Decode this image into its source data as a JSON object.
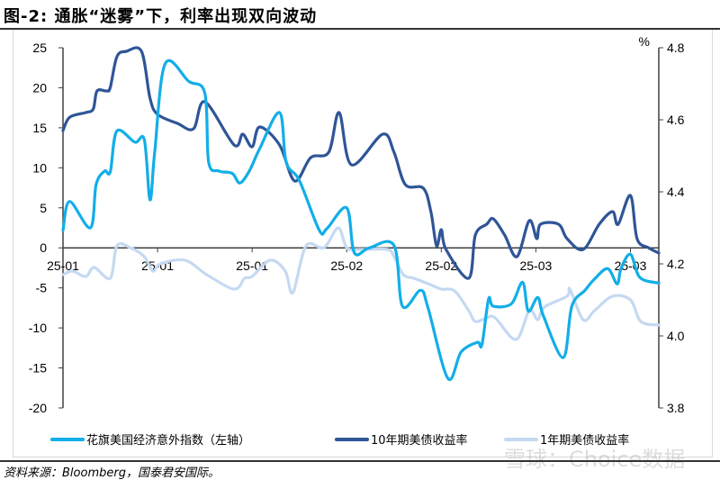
{
  "title": "图-2: 通胀“迷雾”下，利率出现双向波动",
  "source": "资料来源：Bloomberg，国泰君安国际。",
  "watermark": "雪球：Choice数据",
  "chart_data": {
    "type": "line",
    "title": "",
    "y_left": {
      "range": [
        -20,
        25
      ],
      "ticks": [
        25,
        20,
        15,
        10,
        5,
        0,
        -5,
        -10,
        -15,
        -20
      ]
    },
    "y_right": {
      "label": "%",
      "range": [
        3.8,
        4.8
      ],
      "ticks": [
        4.8,
        4.6,
        4.4,
        4.2,
        4.0,
        3.8
      ]
    },
    "x_ticks": [
      {
        "pos": 0,
        "label": "25-01"
      },
      {
        "pos": 10,
        "label": "25-01"
      },
      {
        "pos": 20,
        "label": "25-01"
      },
      {
        "pos": 30,
        "label": "25-02"
      },
      {
        "pos": 40,
        "label": "25-02"
      },
      {
        "pos": 50,
        "label": "25-03"
      },
      {
        "pos": 60,
        "label": "25-03"
      }
    ],
    "x_range": [
      0,
      63
    ],
    "grid": false,
    "legend_position": "bottom",
    "series": [
      {
        "name": "花旗美国经济意外指数（左轴）",
        "axis": "left",
        "color": "#12aee8",
        "points": [
          [
            0,
            2.2
          ],
          [
            0.7,
            5.8
          ],
          [
            2.9,
            2.5
          ],
          [
            3.5,
            7.9
          ],
          [
            4.4,
            9.6
          ],
          [
            5.0,
            9.5
          ],
          [
            5.7,
            14.6
          ],
          [
            7.6,
            13.2
          ],
          [
            8.6,
            13.5
          ],
          [
            9.2,
            6
          ],
          [
            9.7,
            12
          ],
          [
            10.8,
            23
          ],
          [
            13.3,
            20.8
          ],
          [
            15.0,
            19.3
          ],
          [
            15.4,
            10.7
          ],
          [
            16.5,
            9.6
          ],
          [
            17.9,
            9.3
          ],
          [
            18.7,
            8.1
          ],
          [
            19.7,
            9.6
          ],
          [
            20.8,
            12.4
          ],
          [
            22.9,
            16.9
          ],
          [
            23.6,
            10.7
          ],
          [
            25.0,
            8.4
          ],
          [
            27.1,
            2.2
          ],
          [
            27.9,
            2.4
          ],
          [
            30.0,
            5
          ],
          [
            30.8,
            -0.6
          ],
          [
            32.4,
            0
          ],
          [
            35.0,
            0.3
          ],
          [
            35.9,
            -7.3
          ],
          [
            37.8,
            -5.3
          ],
          [
            38.6,
            -7.5
          ],
          [
            40.7,
            -16.3
          ],
          [
            42.1,
            -13
          ],
          [
            43.8,
            -11.8
          ],
          [
            44.3,
            -12.1
          ],
          [
            45.0,
            -6.4
          ],
          [
            45.5,
            -7.3
          ],
          [
            47.4,
            -7
          ],
          [
            48.6,
            -4.3
          ],
          [
            49.2,
            -7.9
          ],
          [
            50.2,
            -6.2
          ],
          [
            50.8,
            -8.5
          ],
          [
            52.9,
            -13.7
          ],
          [
            53.8,
            -7.3
          ],
          [
            55.2,
            -5.3
          ],
          [
            56.2,
            -3.9
          ],
          [
            57.6,
            -2.6
          ],
          [
            58.6,
            -4.5
          ],
          [
            59.0,
            -2.6
          ],
          [
            60.0,
            -0.8
          ],
          [
            61.0,
            -3.7
          ],
          [
            63.0,
            -4.4
          ]
        ]
      },
      {
        "name": "10年期美债收益率",
        "axis": "right",
        "color": "#2f5597",
        "points": [
          [
            0,
            4.57
          ],
          [
            0.7,
            4.607
          ],
          [
            2.4,
            4.62
          ],
          [
            3.2,
            4.63
          ],
          [
            3.6,
            4.68
          ],
          [
            4.6,
            4.68
          ],
          [
            5.0,
            4.69
          ],
          [
            5.7,
            4.775
          ],
          [
            6.7,
            4.79
          ],
          [
            8.3,
            4.79
          ],
          [
            9.2,
            4.66
          ],
          [
            10.0,
            4.615
          ],
          [
            12.1,
            4.59
          ],
          [
            13.8,
            4.575
          ],
          [
            15.0,
            4.65
          ],
          [
            18.1,
            4.53
          ],
          [
            19.0,
            4.56
          ],
          [
            20.0,
            4.525
          ],
          [
            20.8,
            4.58
          ],
          [
            22.9,
            4.53
          ],
          [
            24.5,
            4.43
          ],
          [
            26.2,
            4.495
          ],
          [
            28.1,
            4.51
          ],
          [
            29.2,
            4.62
          ],
          [
            30.5,
            4.475
          ],
          [
            33.8,
            4.56
          ],
          [
            35.0,
            4.51
          ],
          [
            36.2,
            4.42
          ],
          [
            38.1,
            4.41
          ],
          [
            38.9,
            4.345
          ],
          [
            39.5,
            4.25
          ],
          [
            40.0,
            4.295
          ],
          [
            40.5,
            4.24
          ],
          [
            42.9,
            4.16
          ],
          [
            43.6,
            4.28
          ],
          [
            44.8,
            4.31
          ],
          [
            45.5,
            4.325
          ],
          [
            46.7,
            4.28
          ],
          [
            48.0,
            4.22
          ],
          [
            49.3,
            4.32
          ],
          [
            50.1,
            4.27
          ],
          [
            50.5,
            4.31
          ],
          [
            52.4,
            4.31
          ],
          [
            53.3,
            4.27
          ],
          [
            55.0,
            4.24
          ],
          [
            56.7,
            4.31
          ],
          [
            58.1,
            4.345
          ],
          [
            58.7,
            4.31
          ],
          [
            60.0,
            4.39
          ],
          [
            60.7,
            4.27
          ],
          [
            61.9,
            4.245
          ],
          [
            63.0,
            4.23
          ]
        ]
      },
      {
        "name": "1年期美债收益率",
        "axis": "right",
        "color": "#c5d9f1",
        "points": [
          [
            0,
            4.17
          ],
          [
            1.0,
            4.18
          ],
          [
            2.4,
            4.165
          ],
          [
            3.3,
            4.19
          ],
          [
            5.0,
            4.16
          ],
          [
            5.7,
            4.25
          ],
          [
            7.1,
            4.245
          ],
          [
            8.6,
            4.22
          ],
          [
            9.5,
            4.18
          ],
          [
            10.3,
            4.2
          ],
          [
            12.9,
            4.21
          ],
          [
            15.2,
            4.17
          ],
          [
            18.1,
            4.13
          ],
          [
            19.2,
            4.16
          ],
          [
            20.0,
            4.165
          ],
          [
            21.9,
            4.21
          ],
          [
            23.5,
            4.18
          ],
          [
            24.3,
            4.12
          ],
          [
            25.7,
            4.25
          ],
          [
            27.6,
            4.245
          ],
          [
            29.1,
            4.3
          ],
          [
            30.0,
            4.245
          ],
          [
            31.4,
            4.24
          ],
          [
            34.3,
            4.24
          ],
          [
            35.0,
            4.22
          ],
          [
            36.0,
            4.17
          ],
          [
            37.1,
            4.16
          ],
          [
            38.6,
            4.145
          ],
          [
            40.0,
            4.13
          ],
          [
            41.4,
            4.125
          ],
          [
            42.9,
            4.07
          ],
          [
            43.6,
            4.04
          ],
          [
            44.8,
            4.05
          ],
          [
            45.7,
            4.05
          ],
          [
            47.9,
            3.99
          ],
          [
            49.3,
            4.07
          ],
          [
            50.2,
            4.045
          ],
          [
            50.9,
            4.08
          ],
          [
            53.3,
            4.11
          ],
          [
            53.6,
            4.13
          ],
          [
            55.0,
            4.045
          ],
          [
            56.2,
            4.07
          ],
          [
            58.1,
            4.11
          ],
          [
            60.0,
            4.1
          ],
          [
            61.1,
            4.04
          ],
          [
            63.0,
            4.03
          ]
        ]
      }
    ]
  }
}
